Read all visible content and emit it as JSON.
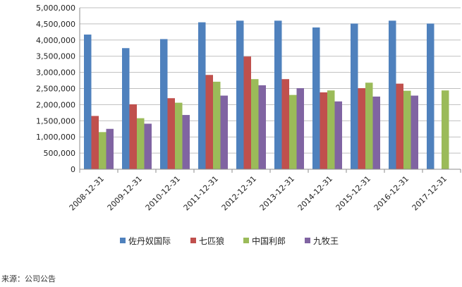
{
  "chart_data": {
    "type": "bar",
    "title": "",
    "xlabel": "",
    "ylabel": "",
    "categories": [
      "2008-12-31",
      "2009-12-31",
      "2010-12-31",
      "2011-12-31",
      "2012-12-31",
      "2013-12-31",
      "2014-12-31",
      "2015-12-31",
      "2016-12-31",
      "2017-12-31"
    ],
    "series": [
      {
        "name": "佐丹奴国际",
        "color": "#4F81BD",
        "values": [
          4170000,
          3750000,
          4030000,
          4550000,
          4600000,
          4600000,
          4390000,
          4510000,
          4600000,
          4510000
        ]
      },
      {
        "name": "七匹狼",
        "color": "#C0504D",
        "values": [
          1650000,
          2010000,
          2200000,
          2920000,
          3490000,
          2790000,
          2380000,
          2510000,
          2650000,
          null
        ]
      },
      {
        "name": "中国利郎",
        "color": "#9BBB59",
        "values": [
          1150000,
          1580000,
          2060000,
          2710000,
          2790000,
          2300000,
          2440000,
          2680000,
          2430000,
          2440000
        ]
      },
      {
        "name": "九牧王",
        "color": "#8064A2",
        "values": [
          1250000,
          1410000,
          1680000,
          2280000,
          2600000,
          2510000,
          2100000,
          2250000,
          2280000,
          null
        ]
      }
    ],
    "yticks": [
      "0",
      "500,000",
      "1,000,000",
      "1,500,000",
      "2,000,000",
      "2,500,000",
      "3,000,000",
      "3,500,000",
      "4,000,000",
      "4,500,000",
      "5,000,000"
    ],
    "ylim": [
      0,
      5000000
    ],
    "grid": true,
    "legend_position": "bottom"
  },
  "source_text": "来源：公司公告"
}
